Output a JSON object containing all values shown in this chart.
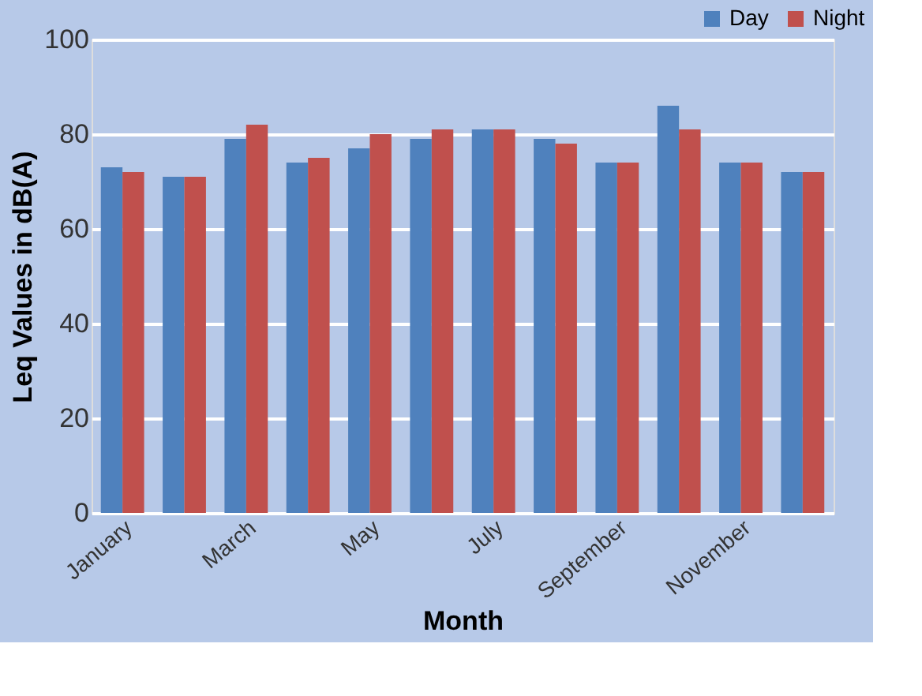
{
  "chart_data": {
    "type": "bar",
    "xlabel": "Month",
    "ylabel": "Leq Values in dB(A)",
    "categories": [
      "January",
      null,
      "March",
      null,
      "May",
      null,
      "July",
      null,
      "September",
      null,
      "November",
      null
    ],
    "series": [
      {
        "name": "Day",
        "color": "#4f81bd",
        "values": [
          73,
          71,
          79,
          74,
          77,
          79,
          81,
          79,
          74,
          86,
          74,
          72
        ]
      },
      {
        "name": "Night",
        "color": "#c0504d",
        "values": [
          72,
          71,
          82,
          75,
          80,
          81,
          81,
          78,
          74,
          81,
          74,
          72
        ]
      }
    ],
    "ylim": [
      0,
      100
    ],
    "yticks": [
      0,
      20,
      40,
      60,
      80,
      100
    ],
    "grid": "y",
    "legend": "top right"
  }
}
